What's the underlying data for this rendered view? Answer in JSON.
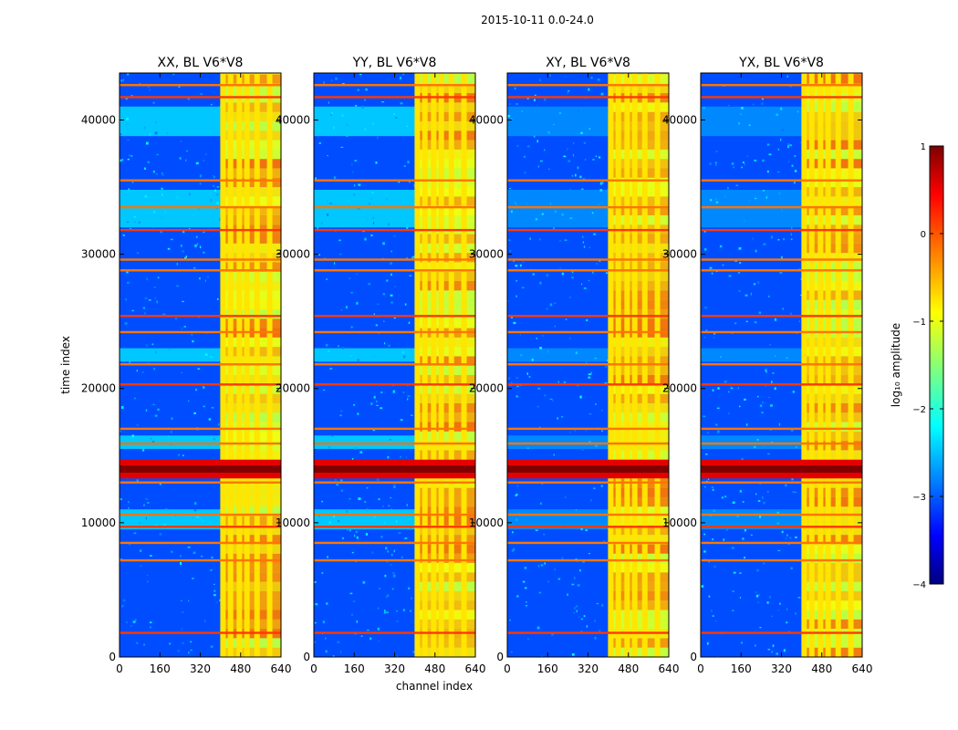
{
  "chart_data": {
    "type": "heatmap",
    "suptitle": "2015-10-11 0.0-24.0",
    "xlabel": "channel index",
    "ylabel": "time index",
    "xlim": [
      0,
      640
    ],
    "ylim": [
      0,
      43500
    ],
    "x_ticks": [
      0,
      160,
      320,
      480,
      640
    ],
    "y_ticks": [
      0,
      10000,
      20000,
      30000,
      40000
    ],
    "panels": [
      {
        "title": "XX, BL V6*V8"
      },
      {
        "title": "YY, BL V6*V8"
      },
      {
        "title": "XY, BL V6*V8"
      },
      {
        "title": "YX, BL V6*V8"
      }
    ],
    "colorbar": {
      "label": "log₁₀ amplitude",
      "range": [
        -4,
        1
      ],
      "ticks": [
        1,
        0,
        -1,
        -2,
        -3,
        -4
      ],
      "tick_labels": [
        "1",
        "0",
        "−1",
        "−2",
        "−3",
        "−4"
      ],
      "colormap": "jet"
    },
    "features": {
      "interference_channel_band": [
        400,
        640
      ],
      "bright_channel_columns": [
        410,
        440,
        475,
        505,
        545,
        595
      ],
      "bright_time_rows": [
        1800,
        7200,
        8500,
        9700,
        10600,
        13000,
        14100,
        15900,
        17000,
        20300,
        21800,
        24200,
        25400,
        28800,
        29600,
        31800,
        33500,
        35500,
        41700,
        42600
      ],
      "elevated_time_bands": [
        [
          38800,
          41000
        ],
        [
          32000,
          34800
        ],
        [
          22000,
          23000
        ],
        [
          9500,
          11000
        ],
        [
          15500,
          16500
        ]
      ],
      "peak_time_band": [
        13300,
        14700
      ]
    }
  }
}
